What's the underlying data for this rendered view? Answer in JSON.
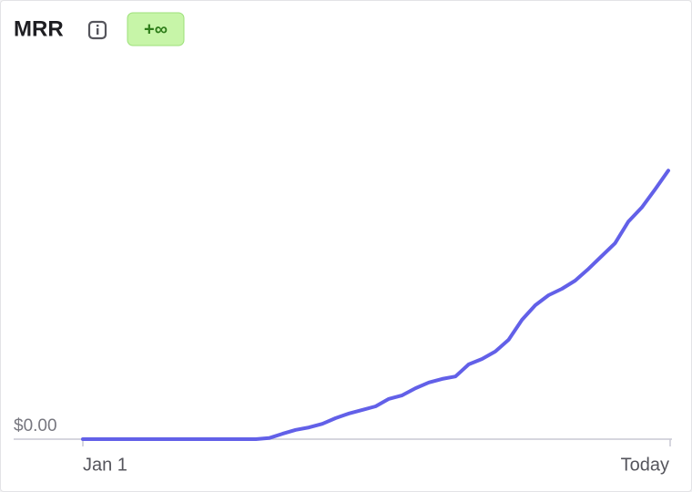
{
  "chart_data": {
    "type": "line",
    "title": "MRR",
    "badge": "+∞",
    "categories": [
      "Jan 1",
      null,
      null,
      null,
      null,
      null,
      null,
      null,
      null,
      null,
      null,
      null,
      null,
      null,
      null,
      null,
      null,
      null,
      null,
      null,
      null,
      null,
      null,
      null,
      null,
      null,
      null,
      null,
      null,
      null,
      null,
      null,
      null,
      null,
      null,
      null,
      null,
      null,
      null,
      null,
      null,
      null,
      null,
      null,
      "Today"
    ],
    "values": [
      0,
      0,
      0,
      0,
      0,
      0,
      0,
      0,
      0,
      0,
      0,
      0,
      0,
      0,
      0.3,
      1.5,
      2.6,
      3.3,
      4.3,
      5.9,
      7.2,
      8.2,
      9.2,
      11.3,
      12.3,
      14.3,
      15.9,
      16.9,
      17.6,
      21.0,
      22.5,
      24.6,
      27.9,
      33.5,
      37.6,
      40.4,
      42.2,
      44.5,
      47.8,
      51.4,
      55.0,
      61.1,
      65.0,
      70.1,
      75.4
    ],
    "color": "#6260e8",
    "ylim": [
      0,
      100
    ],
    "yticks": [
      {
        "value": 0,
        "label": "$0.00"
      }
    ]
  }
}
